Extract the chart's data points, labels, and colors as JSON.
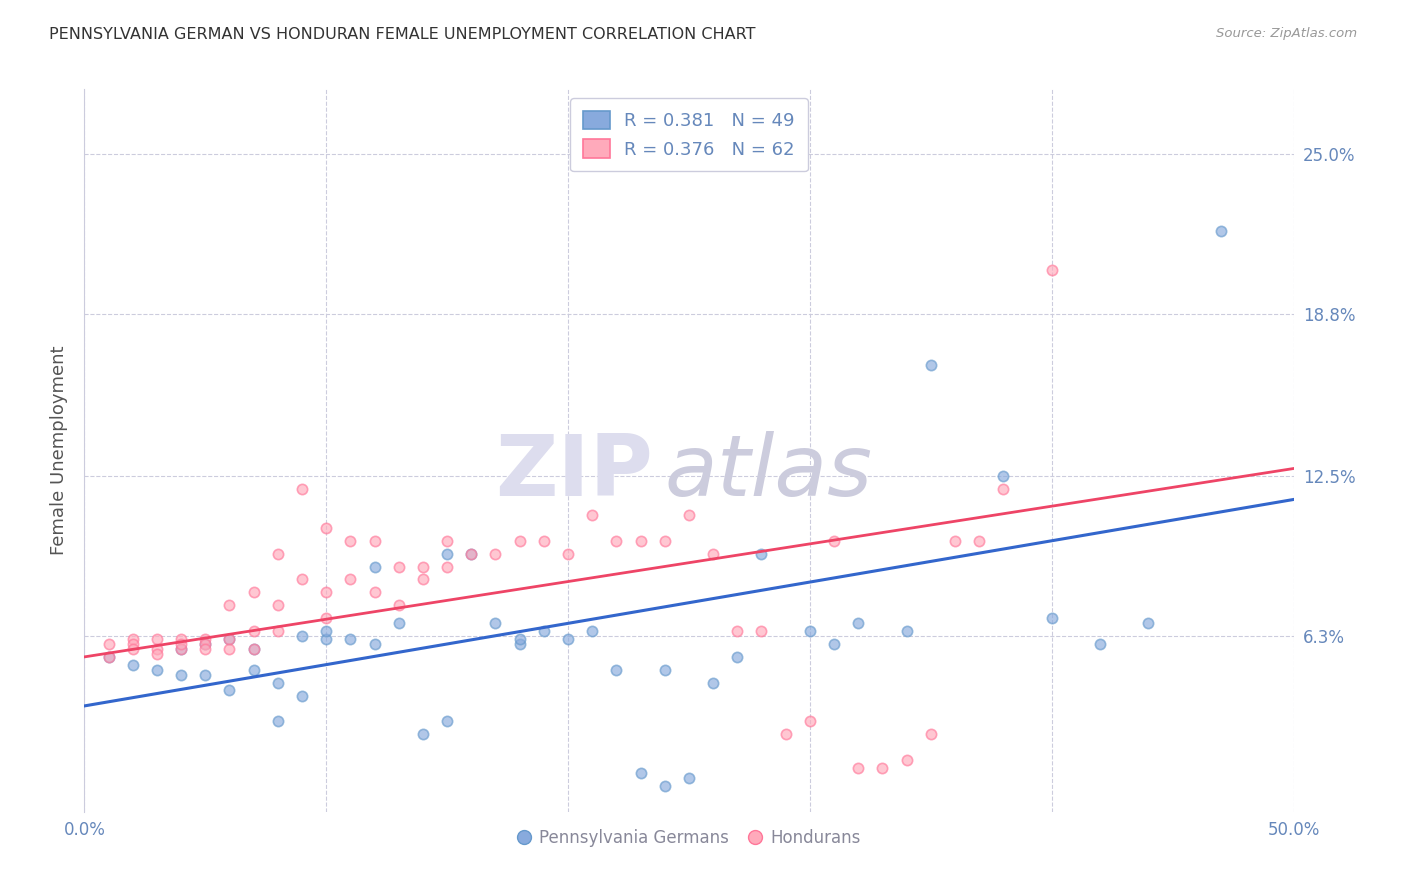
{
  "title": "PENNSYLVANIA GERMAN VS HONDURAN FEMALE UNEMPLOYMENT CORRELATION CHART",
  "source": "Source: ZipAtlas.com",
  "ylabel": "Female Unemployment",
  "xlim": [
    0.0,
    0.5
  ],
  "ylim": [
    -0.005,
    0.275
  ],
  "xtick_positions": [
    0.0,
    0.1,
    0.2,
    0.3,
    0.4,
    0.5
  ],
  "xticklabels": [
    "0.0%",
    "",
    "",
    "",
    "",
    "50.0%"
  ],
  "ytick_positions": [
    0.0,
    0.063,
    0.125,
    0.188,
    0.25
  ],
  "ytick_labels": [
    "",
    "6.3%",
    "12.5%",
    "18.8%",
    "25.0%"
  ],
  "legend_r1": "R = 0.381",
  "legend_n1": "N = 49",
  "legend_r2": "R = 0.376",
  "legend_n2": "N = 62",
  "blue_color": "#88AADD",
  "pink_color": "#FFAABB",
  "blue_edge_color": "#6699CC",
  "pink_edge_color": "#FF7799",
  "line_blue": "#3366CC",
  "line_pink": "#EE4466",
  "watermark_zip": "ZIP",
  "watermark_atlas": "atlas",
  "blue_scatter_x": [
    0.01,
    0.02,
    0.03,
    0.04,
    0.04,
    0.05,
    0.05,
    0.06,
    0.06,
    0.07,
    0.07,
    0.08,
    0.08,
    0.09,
    0.09,
    0.1,
    0.1,
    0.11,
    0.12,
    0.12,
    0.13,
    0.14,
    0.15,
    0.15,
    0.16,
    0.17,
    0.18,
    0.18,
    0.19,
    0.2,
    0.21,
    0.22,
    0.23,
    0.24,
    0.24,
    0.25,
    0.26,
    0.27,
    0.28,
    0.3,
    0.31,
    0.32,
    0.34,
    0.35,
    0.38,
    0.4,
    0.42,
    0.44,
    0.47
  ],
  "blue_scatter_y": [
    0.055,
    0.052,
    0.05,
    0.048,
    0.058,
    0.06,
    0.048,
    0.062,
    0.042,
    0.058,
    0.05,
    0.03,
    0.045,
    0.04,
    0.063,
    0.062,
    0.065,
    0.062,
    0.06,
    0.09,
    0.068,
    0.025,
    0.03,
    0.095,
    0.095,
    0.068,
    0.06,
    0.062,
    0.065,
    0.062,
    0.065,
    0.05,
    0.01,
    0.005,
    0.05,
    0.008,
    0.045,
    0.055,
    0.095,
    0.065,
    0.06,
    0.068,
    0.065,
    0.168,
    0.125,
    0.07,
    0.06,
    0.068,
    0.22
  ],
  "pink_scatter_x": [
    0.01,
    0.01,
    0.02,
    0.02,
    0.02,
    0.03,
    0.03,
    0.03,
    0.04,
    0.04,
    0.04,
    0.05,
    0.05,
    0.05,
    0.06,
    0.06,
    0.06,
    0.07,
    0.07,
    0.07,
    0.08,
    0.08,
    0.08,
    0.09,
    0.09,
    0.1,
    0.1,
    0.1,
    0.11,
    0.11,
    0.12,
    0.12,
    0.13,
    0.13,
    0.14,
    0.14,
    0.15,
    0.15,
    0.16,
    0.17,
    0.18,
    0.19,
    0.2,
    0.21,
    0.22,
    0.23,
    0.24,
    0.25,
    0.26,
    0.27,
    0.28,
    0.29,
    0.3,
    0.31,
    0.32,
    0.33,
    0.34,
    0.35,
    0.36,
    0.37,
    0.38,
    0.4
  ],
  "pink_scatter_y": [
    0.06,
    0.055,
    0.062,
    0.06,
    0.058,
    0.062,
    0.058,
    0.056,
    0.062,
    0.058,
    0.06,
    0.062,
    0.06,
    0.058,
    0.075,
    0.062,
    0.058,
    0.08,
    0.065,
    0.058,
    0.095,
    0.075,
    0.065,
    0.12,
    0.085,
    0.105,
    0.08,
    0.07,
    0.1,
    0.085,
    0.1,
    0.08,
    0.09,
    0.075,
    0.09,
    0.085,
    0.1,
    0.09,
    0.095,
    0.095,
    0.1,
    0.1,
    0.095,
    0.11,
    0.1,
    0.1,
    0.1,
    0.11,
    0.095,
    0.065,
    0.065,
    0.025,
    0.03,
    0.1,
    0.012,
    0.012,
    0.015,
    0.025,
    0.1,
    0.1,
    0.12,
    0.205
  ],
  "blue_line_x": [
    0.0,
    0.5
  ],
  "blue_line_y": [
    0.036,
    0.116
  ],
  "pink_line_x": [
    0.0,
    0.5
  ],
  "pink_line_y": [
    0.055,
    0.128
  ],
  "background_color": "#FFFFFF",
  "grid_color": "#CCCCDD",
  "title_color": "#333333",
  "axis_tick_color": "#6688BB",
  "ylabel_color": "#555555",
  "watermark_color_zip": "#CCCCDD",
  "watermark_color_atlas": "#CCCCDD",
  "scatter_size": 55,
  "scatter_alpha": 0.65
}
